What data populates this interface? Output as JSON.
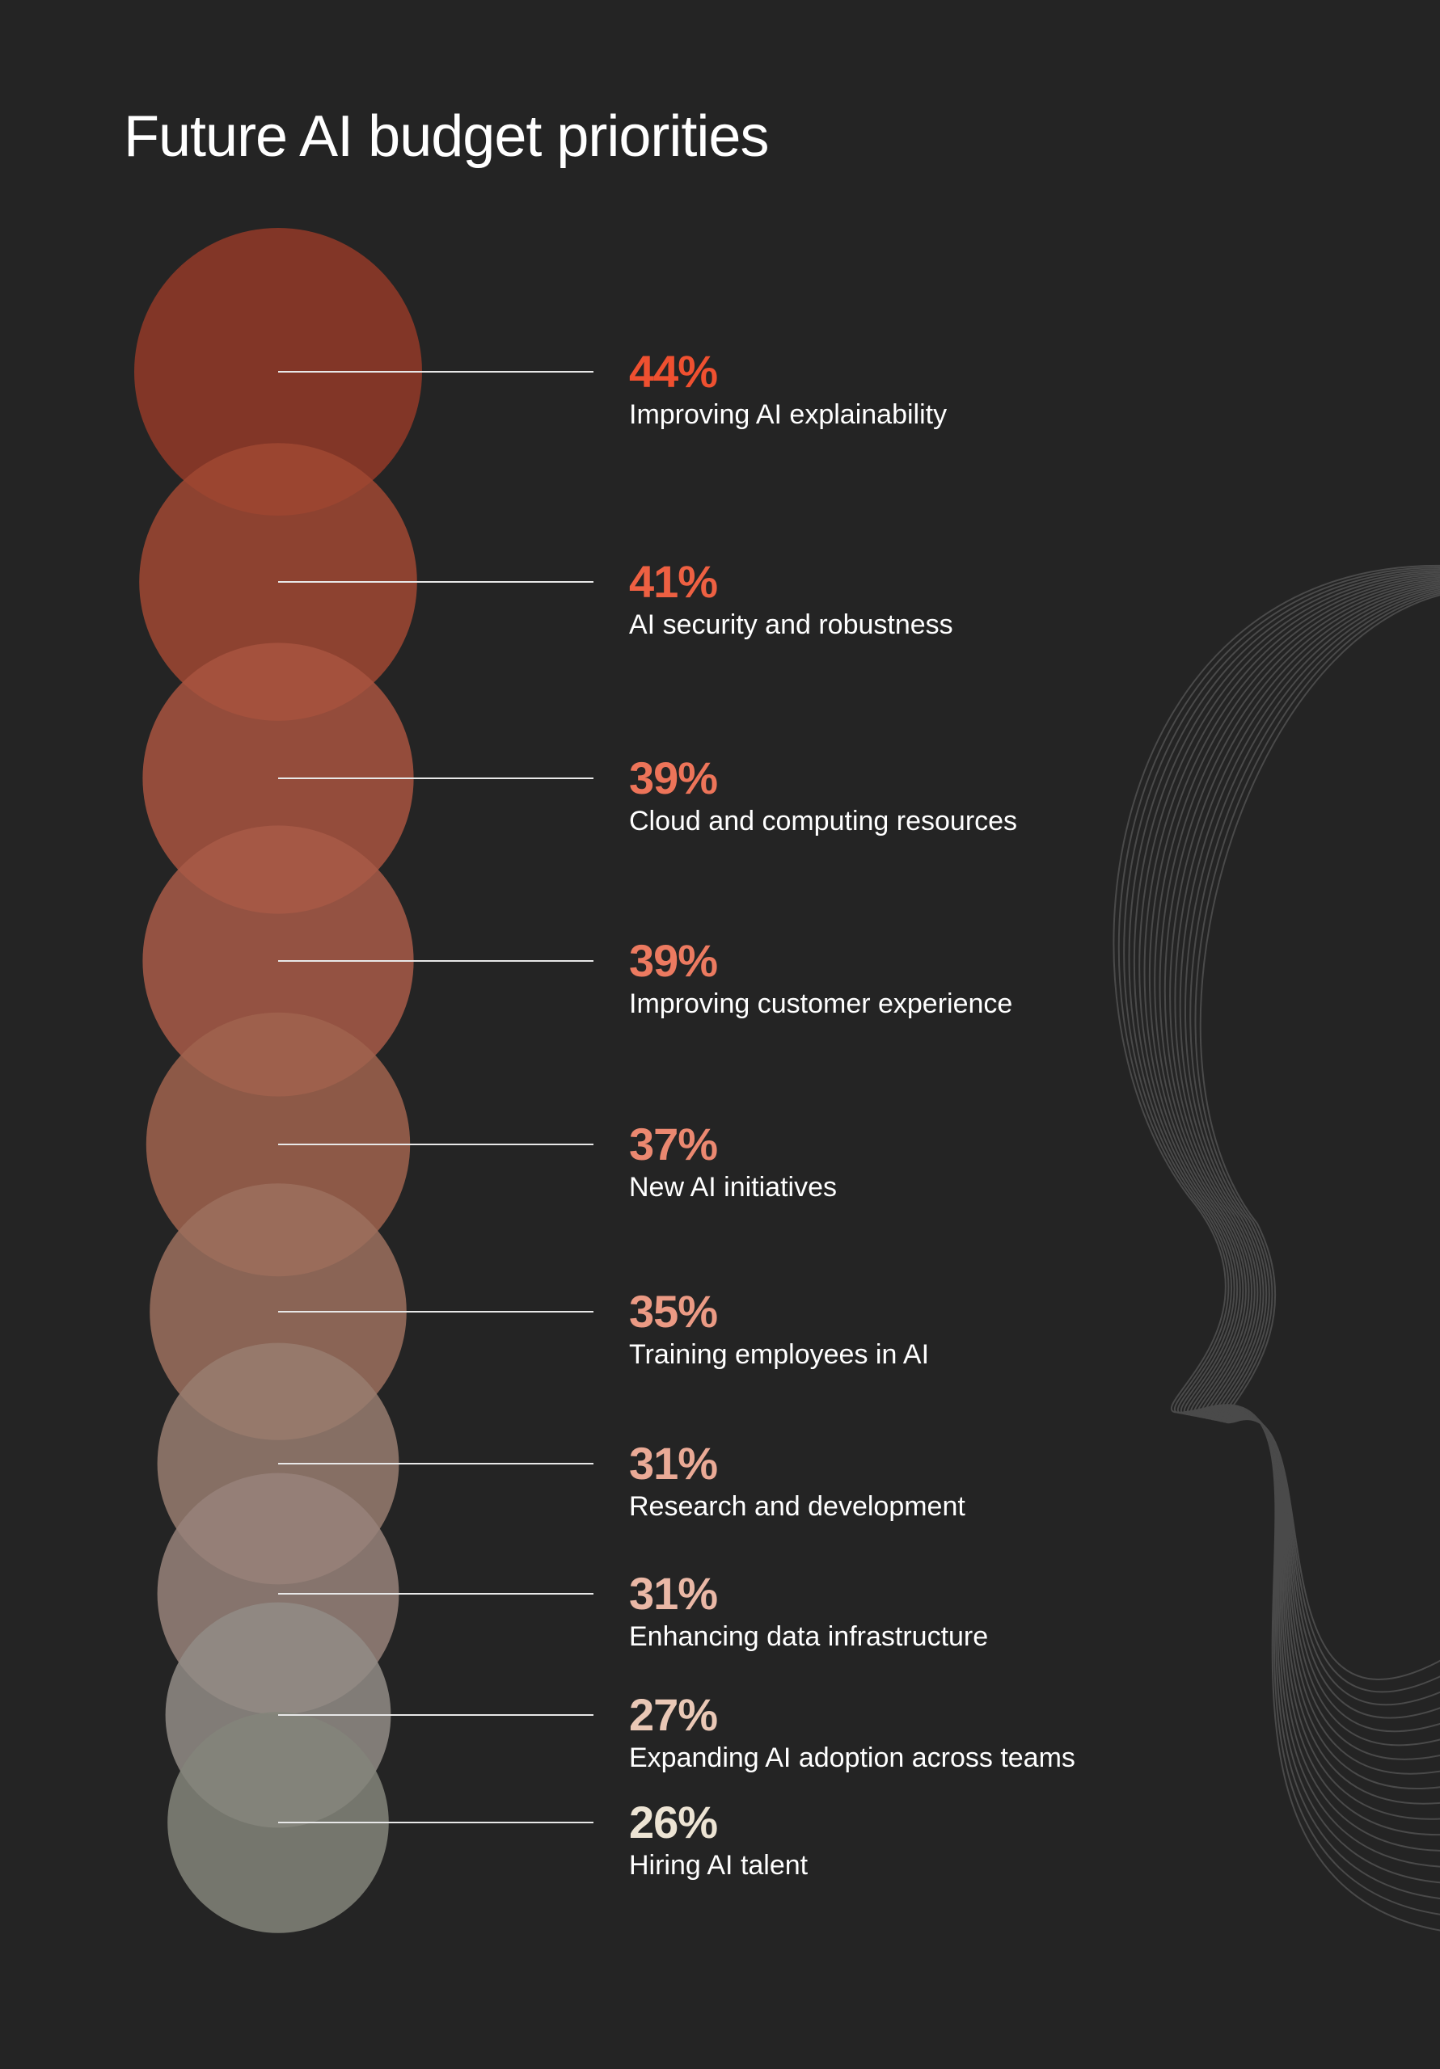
{
  "chart_data": {
    "type": "bubble",
    "title": "Future AI budget priorities",
    "unit": "%",
    "items": [
      {
        "label": "Improving AI explainability",
        "value": 44,
        "display": "44%",
        "color": "#ef5030",
        "fill": "#933a28"
      },
      {
        "label": "AI security and robustness",
        "value": 41,
        "display": "41%",
        "color": "#ee6042",
        "fill": "#a04832"
      },
      {
        "label": "Cloud and computing resources",
        "value": 39,
        "display": "39%",
        "color": "#ed7459",
        "fill": "#a85440"
      },
      {
        "label": "Improving customer experience",
        "value": 39,
        "display": "39%",
        "color": "#ec7a60",
        "fill": "#a85a48"
      },
      {
        "label": "New AI initiatives",
        "value": 37,
        "display": "37%",
        "color": "#eb8870",
        "fill": "#a0634e"
      },
      {
        "label": "Training employees in AI",
        "value": 35,
        "display": "35%",
        "color": "#eb9a84",
        "fill": "#9c705e"
      },
      {
        "label": "Research and development",
        "value": 31,
        "display": "31%",
        "color": "#eaaa96",
        "fill": "#987c70"
      },
      {
        "label": "Enhancing data infrastructure",
        "value": 31,
        "display": "31%",
        "color": "#eab8a6",
        "fill": "#98827a"
      },
      {
        "label": "Expanding AI adoption across teams",
        "value": 27,
        "display": "27%",
        "color": "#eac8b6",
        "fill": "#928c86"
      },
      {
        "label": "Hiring AI talent",
        "value": 26,
        "display": "26%",
        "color": "#ede4d4",
        "fill": "#84857a"
      }
    ]
  }
}
